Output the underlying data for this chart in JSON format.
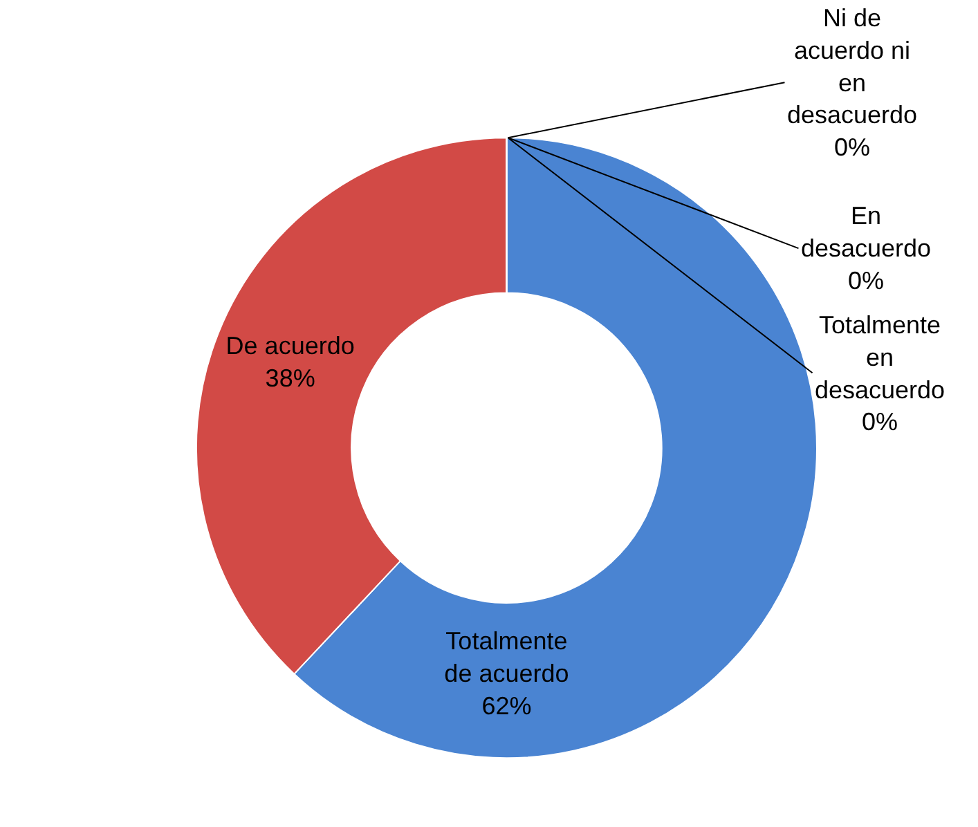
{
  "chart_data": {
    "type": "donut",
    "categories": [
      "Totalmente de acuerdo",
      "De acuerdo",
      "Ni de acuerdo ni en desacuerdo",
      "En desacuerdo",
      "Totalmente en desacuerdo"
    ],
    "values": [
      62,
      38,
      0,
      0,
      0
    ],
    "value_labels": [
      "62%",
      "38%",
      "0%",
      "0%",
      "0%"
    ],
    "colors": [
      "#4a84d2",
      "#d24a46",
      "#9bbb59",
      "#8064a2",
      "#4bacc6"
    ],
    "legend": false
  }
}
